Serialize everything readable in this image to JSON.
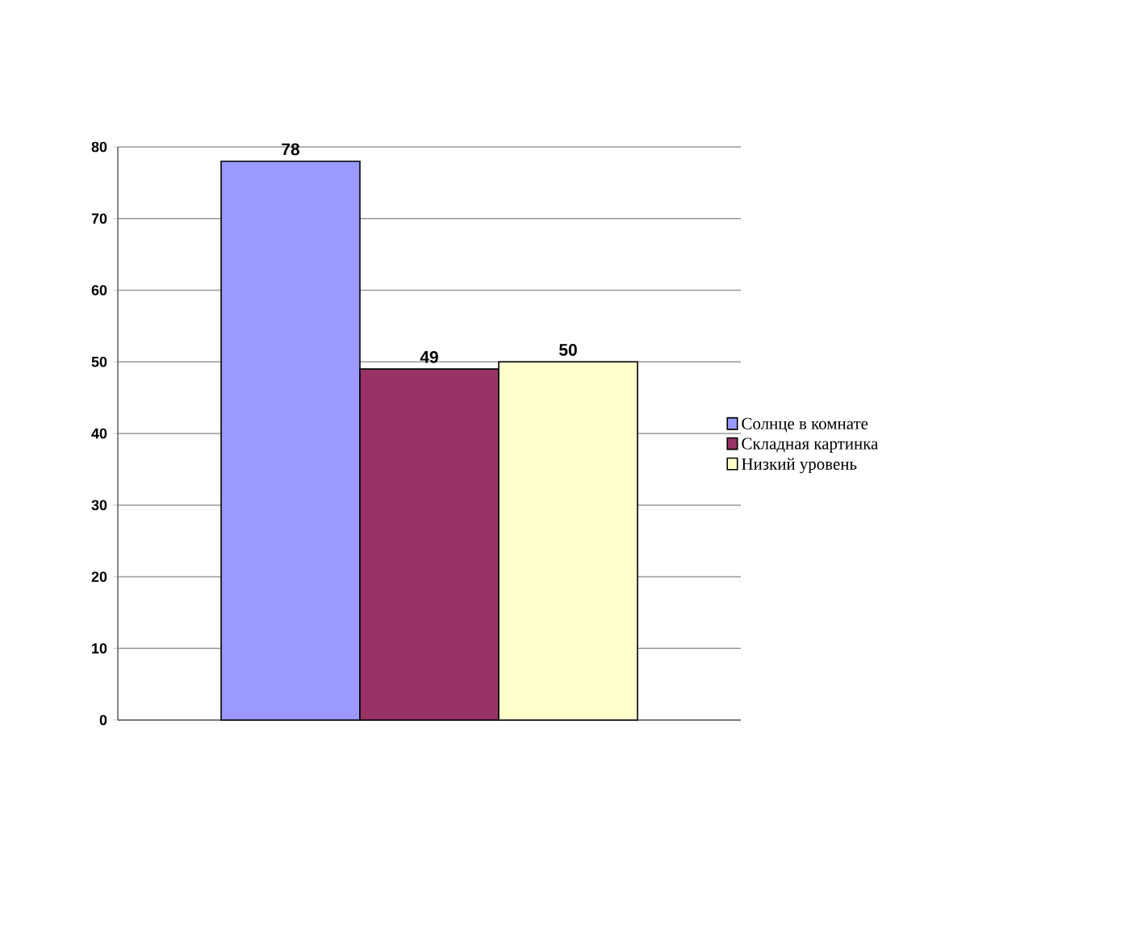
{
  "chart_data": {
    "type": "bar",
    "categories": [
      null
    ],
    "series": [
      {
        "name": "Солнце в комнате",
        "color": "#9999ff",
        "values": [
          78
        ]
      },
      {
        "name": "Складная картинка",
        "color": "#993366",
        "values": [
          49
        ]
      },
      {
        "name": "Низкий уровень",
        "color": "#ffffcc",
        "values": [
          50
        ]
      }
    ],
    "ylim": [
      0,
      80
    ],
    "yticks": [
      0,
      10,
      20,
      30,
      40,
      50,
      60,
      70,
      80
    ],
    "grid": "y",
    "legend": "right",
    "data_labels": true
  }
}
